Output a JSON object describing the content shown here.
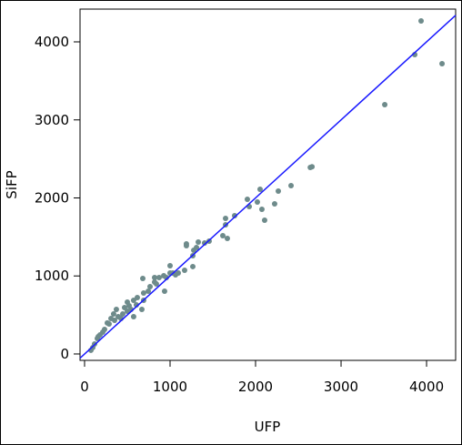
{
  "chart_data": {
    "type": "scatter",
    "x_label": "UFP",
    "y_label": "SiFP",
    "x": [
      3936,
      3862,
      4181,
      3511,
      2660,
      2640,
      2415,
      2266,
      2223,
      2106,
      2074,
      2021,
      2053,
      1904,
      1926,
      1755,
      1649,
      1649,
      1670,
      1617,
      1457,
      1404,
      1330,
      1309,
      1266,
      1266,
      1277,
      1191,
      1191,
      1170,
      1096,
      1064,
      1000,
      1000,
      926,
      936,
      819,
      840,
      819,
      766,
      691,
      681,
      745,
      670,
      617,
      574,
      543,
      574,
      500,
      500,
      447,
      426,
      372,
      340,
      309,
      266,
      234,
      181,
      149,
      117,
      96,
      74,
      394,
      351,
      287,
      213,
      160,
      468,
      521,
      606,
      691,
      872,
      957,
      1032
    ],
    "y": [
      4268,
      3837,
      3720,
      3195,
      2400,
      2390,
      2157,
      2087,
      1924,
      1714,
      1854,
      1947,
      2111,
      1982,
      1889,
      1772,
      1738,
      1656,
      1481,
      1516,
      1446,
      1423,
      1434,
      1364,
      1259,
      1120,
      1329,
      1411,
      1388,
      1073,
      1038,
      1015,
      1038,
      1131,
      1003,
      805,
      980,
      898,
      921,
      863,
      781,
      968,
      805,
      571,
      723,
      688,
      571,
      478,
      665,
      548,
      513,
      455,
      571,
      513,
      455,
      397,
      315,
      245,
      198,
      128,
      82,
      47,
      478,
      431,
      385,
      280,
      222,
      595,
      618,
      630,
      688,
      980,
      980,
      1038
    ],
    "color": "#6e8b8b",
    "reference_line": {
      "slope": 1,
      "intercept": 0,
      "color": "#1a1aff"
    },
    "xlim": [
      -53,
      4340
    ],
    "ylim": [
      -82,
      4420
    ],
    "xticks": [
      0,
      1000,
      2000,
      3000,
      4000
    ],
    "yticks": [
      0,
      1000,
      2000,
      3000,
      4000
    ]
  }
}
